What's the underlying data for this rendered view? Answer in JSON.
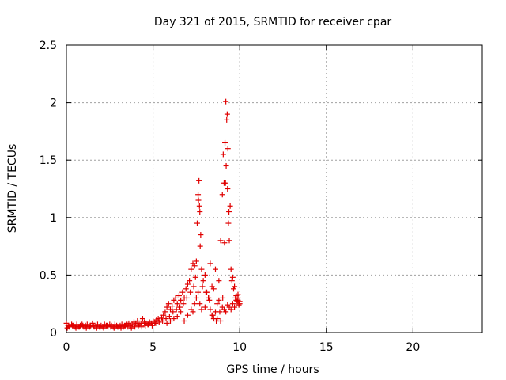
{
  "chart_data": {
    "type": "scatter",
    "title": "Day 321 of 2015, SRMTID for receiver cpar",
    "xlabel": "GPS time / hours",
    "ylabel": "SRMTID / TECUs",
    "xlim": [
      0,
      24
    ],
    "ylim": [
      0,
      2.5
    ],
    "xticks": [
      0,
      5,
      10,
      15,
      20
    ],
    "yticks": [
      0,
      0.5,
      1,
      1.5,
      2,
      2.5
    ],
    "xtick_labels": [
      "0",
      "5",
      "10",
      "15",
      "20"
    ],
    "ytick_labels": [
      "0",
      "0.5",
      "1",
      "1.5",
      "2",
      "2.5"
    ],
    "grid": true,
    "marker": "plus",
    "color": "#e00000",
    "series": [
      {
        "x": [
          0.0,
          0.1,
          0.2,
          0.3,
          0.4,
          0.5,
          0.6,
          0.7,
          0.8,
          0.9,
          1.0,
          1.1,
          1.2,
          1.3,
          1.4,
          1.5,
          1.6,
          1.7,
          1.8,
          1.9,
          2.0,
          2.1,
          2.2,
          2.3,
          2.4,
          2.5,
          2.6,
          2.7,
          2.8,
          2.9,
          3.0,
          3.1,
          3.2,
          3.3,
          3.4,
          3.5,
          3.6,
          3.7,
          3.8,
          3.9,
          4.0,
          4.1,
          4.2,
          4.3,
          4.4,
          4.5,
          4.6,
          4.7,
          4.8,
          4.9,
          5.0,
          5.1,
          5.2,
          5.3,
          5.4,
          5.5,
          5.6,
          5.7,
          5.8,
          5.9,
          6.0,
          6.1,
          6.2,
          6.3,
          6.4,
          6.5,
          6.6,
          6.7,
          6.8,
          6.9,
          7.0,
          7.1,
          7.2,
          7.3,
          7.4,
          7.5,
          7.55,
          7.6,
          7.65,
          7.7,
          7.75,
          7.8,
          7.9,
          8.0,
          8.1,
          8.2,
          8.3,
          8.4,
          8.5,
          8.6,
          8.7,
          8.8,
          8.9,
          9.0,
          9.05,
          9.1,
          9.15,
          9.2,
          9.25,
          9.3,
          9.35,
          9.4,
          9.5,
          9.6,
          9.7,
          9.8,
          9.9,
          10.0,
          0.05,
          0.15,
          0.35,
          0.55,
          0.75,
          0.95,
          1.15,
          1.35,
          1.55,
          1.75,
          1.95,
          2.15,
          2.35,
          2.55,
          2.75,
          2.95,
          3.15,
          3.35,
          3.55,
          3.75,
          3.95,
          4.15,
          4.35,
          4.55,
          4.75,
          4.95,
          5.15,
          5.35,
          5.55,
          5.75,
          5.95,
          6.15,
          6.35,
          6.55,
          6.75,
          6.95,
          7.15,
          7.35,
          7.45,
          7.62,
          7.68,
          7.72,
          7.85,
          8.05,
          8.25,
          8.45,
          8.65,
          8.85,
          9.02,
          9.12,
          9.18,
          9.22,
          9.28,
          9.32,
          9.38,
          9.45,
          9.55,
          9.65,
          9.75,
          9.85,
          9.95,
          6.8,
          7.0,
          7.2,
          7.3,
          7.4,
          7.5,
          7.6,
          7.7,
          7.8,
          8.0,
          8.2,
          8.4,
          8.6,
          8.8,
          9.0,
          9.1,
          9.2,
          9.3,
          9.4,
          9.5,
          9.6,
          9.7,
          9.8,
          9.9,
          10.0,
          5.8,
          6.0,
          6.2,
          6.4,
          6.6,
          8.3,
          8.5,
          8.7,
          8.9,
          9.9
        ],
        "y": [
          0.08,
          0.06,
          0.05,
          0.07,
          0.06,
          0.05,
          0.07,
          0.05,
          0.06,
          0.07,
          0.05,
          0.06,
          0.07,
          0.05,
          0.06,
          0.08,
          0.05,
          0.06,
          0.07,
          0.05,
          0.06,
          0.05,
          0.07,
          0.06,
          0.05,
          0.07,
          0.06,
          0.05,
          0.07,
          0.06,
          0.05,
          0.06,
          0.07,
          0.05,
          0.06,
          0.07,
          0.08,
          0.06,
          0.07,
          0.09,
          0.08,
          0.1,
          0.07,
          0.08,
          0.12,
          0.09,
          0.08,
          0.07,
          0.09,
          0.08,
          0.1,
          0.09,
          0.11,
          0.12,
          0.1,
          0.13,
          0.15,
          0.18,
          0.22,
          0.25,
          0.2,
          0.23,
          0.28,
          0.3,
          0.25,
          0.32,
          0.28,
          0.35,
          0.3,
          0.38,
          0.42,
          0.45,
          0.55,
          0.6,
          0.58,
          0.62,
          0.95,
          1.2,
          1.32,
          1.05,
          0.85,
          0.55,
          0.45,
          0.5,
          0.35,
          0.3,
          0.2,
          0.15,
          0.12,
          0.18,
          0.25,
          0.45,
          0.8,
          1.2,
          1.55,
          1.3,
          1.65,
          2.01,
          1.85,
          1.25,
          0.95,
          0.8,
          0.55,
          0.48,
          0.4,
          0.32,
          0.28,
          0.25,
          0.04,
          0.05,
          0.06,
          0.04,
          0.05,
          0.06,
          0.04,
          0.05,
          0.06,
          0.04,
          0.05,
          0.04,
          0.06,
          0.05,
          0.04,
          0.05,
          0.04,
          0.06,
          0.05,
          0.04,
          0.05,
          0.06,
          0.05,
          0.06,
          0.07,
          0.06,
          0.08,
          0.09,
          0.1,
          0.12,
          0.14,
          0.18,
          0.2,
          0.22,
          0.25,
          0.3,
          0.35,
          0.4,
          0.48,
          1.15,
          1.1,
          0.75,
          0.4,
          0.35,
          0.28,
          0.15,
          0.1,
          0.18,
          0.3,
          0.78,
          1.3,
          1.45,
          1.9,
          1.6,
          1.05,
          1.1,
          0.45,
          0.38,
          0.3,
          0.27,
          0.24,
          0.1,
          0.15,
          0.2,
          0.18,
          0.25,
          0.3,
          0.35,
          0.25,
          0.2,
          0.22,
          0.3,
          0.4,
          0.55,
          0.28,
          0.22,
          0.2,
          0.18,
          0.24,
          0.22,
          0.2,
          0.25,
          0.22,
          0.28,
          0.3,
          0.27,
          0.08,
          0.1,
          0.12,
          0.14,
          0.18,
          0.6,
          0.38,
          0.12,
          0.1,
          0.33
        ]
      }
    ]
  }
}
